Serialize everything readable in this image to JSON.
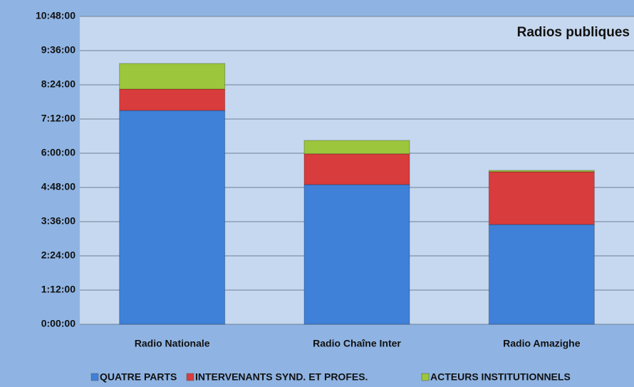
{
  "chart_data": {
    "type": "stacked_bar",
    "title": "Radios publiques",
    "categories": [
      "Radio Nationale",
      "Radio Chaîne Inter",
      "Radio Amazighe"
    ],
    "series": [
      {
        "name": "QUATRE PARTS",
        "color": "#3f80d8",
        "values": [
          7.5,
          4.9,
          3.5
        ]
      },
      {
        "name": "INTERVENANTS SYND. ET PROFES.",
        "color": "#d83c3c",
        "values": [
          0.75,
          1.08,
          1.85
        ]
      },
      {
        "name": "ACTEURS INSTITUTIONNELS",
        "color": "#9cc63c",
        "values": [
          0.9,
          0.47,
          0.05
        ]
      }
    ],
    "ylim": [
      0,
      10.8
    ],
    "yticks": [
      {
        "value": 0,
        "label": "0:00:00"
      },
      {
        "value": 1.2,
        "label": "1:12:00"
      },
      {
        "value": 2.4,
        "label": "2:24:00"
      },
      {
        "value": 3.6,
        "label": "3:36:00"
      },
      {
        "value": 4.8,
        "label": "4:48:00"
      },
      {
        "value": 6,
        "label": "6:00:00"
      },
      {
        "value": 7.2,
        "label": "7:12:00"
      },
      {
        "value": 8.4,
        "label": "8:24:00"
      },
      {
        "value": 9.6,
        "label": "9:36:00"
      },
      {
        "value": 10.8,
        "label": "10:48:00"
      }
    ],
    "grid": true,
    "legend": "bottom"
  }
}
